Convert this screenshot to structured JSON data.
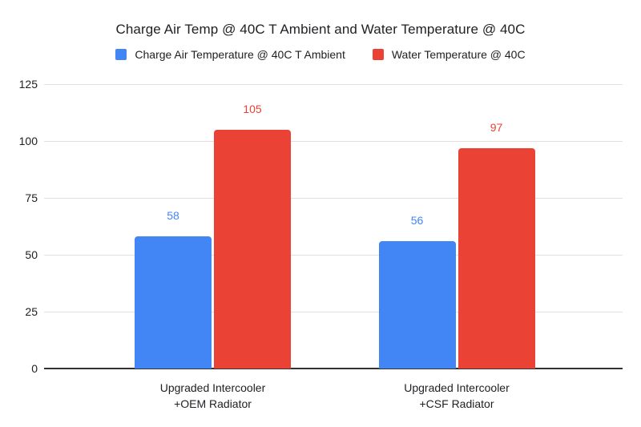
{
  "chart_data": {
    "type": "bar",
    "title": "Charge Air Temp @ 40C T Ambient and Water Temperature @ 40C",
    "categories": [
      "Upgraded Intercooler\n+OEM Radiator",
      "Upgraded Intercooler\n+CSF Radiator"
    ],
    "series": [
      {
        "name": "Charge Air Temperature @ 40C T Ambient",
        "color": "#4285F4",
        "values": [
          58,
          56
        ]
      },
      {
        "name": "Water Temperature @ 40C",
        "color": "#EA4335",
        "values": [
          105,
          97
        ]
      }
    ],
    "xlabel": "",
    "ylabel": "",
    "ylim": [
      0,
      125
    ],
    "yticks": [
      0,
      25,
      50,
      75,
      100,
      125
    ],
    "grid": true,
    "legend_position": "top",
    "data_labels": true,
    "colors": {
      "gridline": "#e0e0e0",
      "axis_baseline": "#333333",
      "text": "#202124",
      "background": "#ffffff"
    }
  }
}
